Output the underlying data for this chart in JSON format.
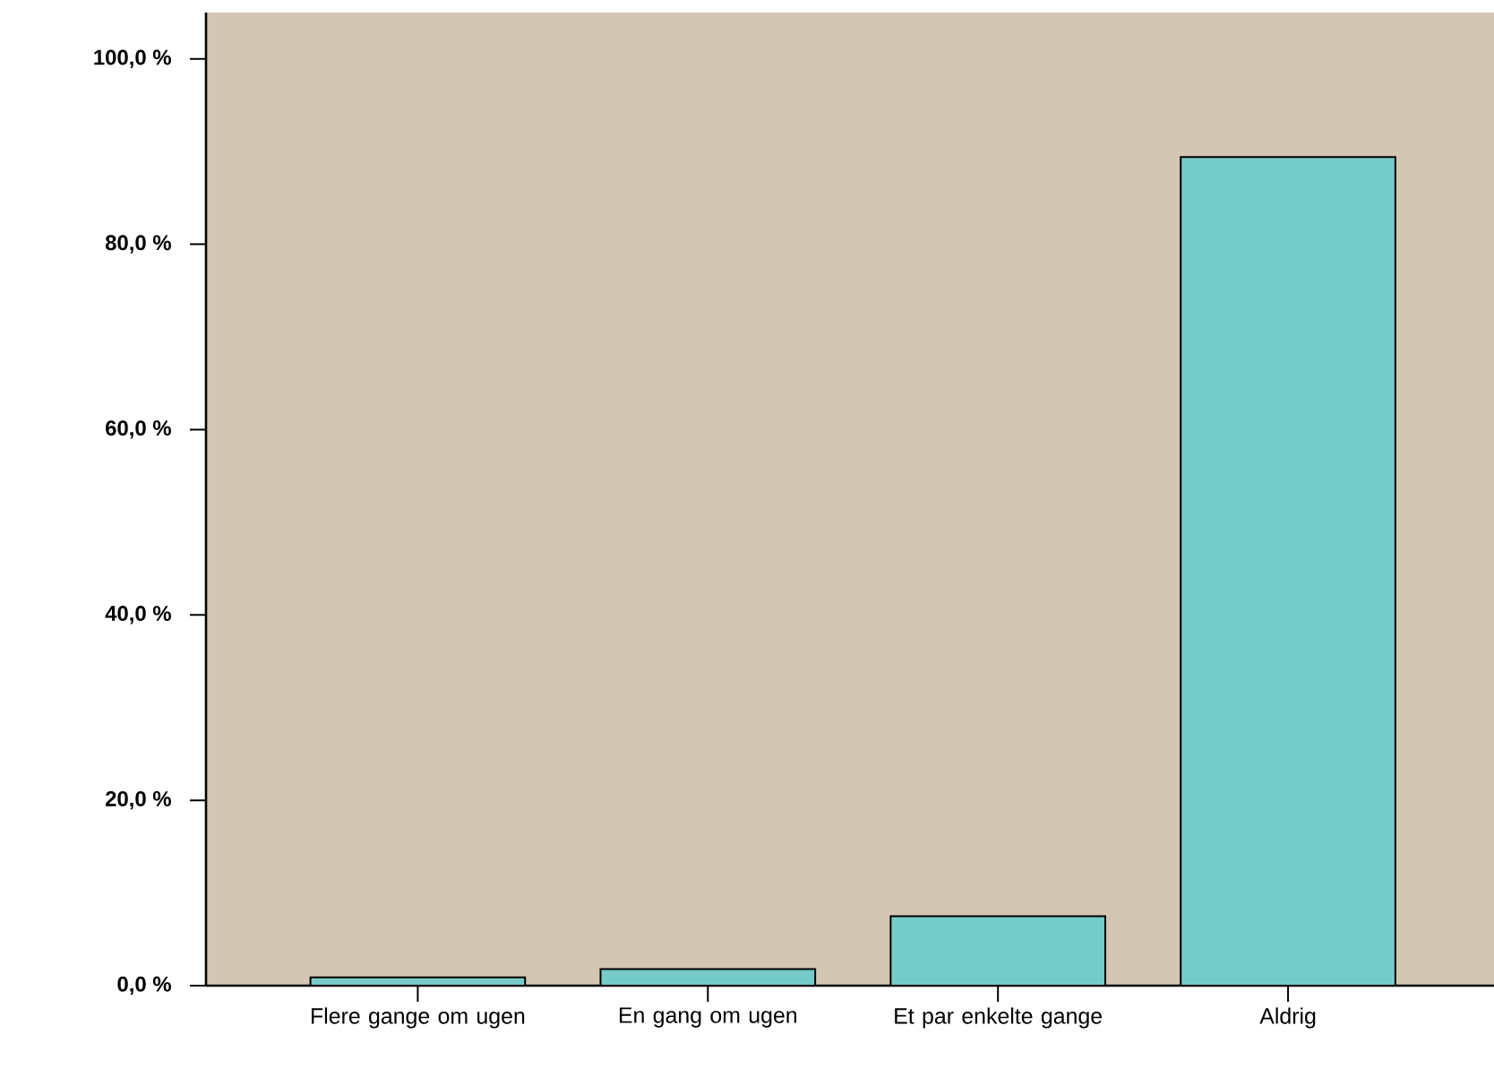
{
  "chart_data": {
    "type": "bar",
    "categories": [
      "Flere gange om ugen",
      "En gang om ugen",
      "Et par enkelte gange",
      "Aldrig"
    ],
    "values": [
      0.9,
      1.8,
      7.5,
      89.4
    ],
    "color": "#75cbc8",
    "ylim": [
      0,
      105
    ],
    "yticks": [
      {
        "value": 0,
        "label": "0,0 %"
      },
      {
        "value": 20,
        "label": "20,0 %"
      },
      {
        "value": 40,
        "label": "40,0 %"
      },
      {
        "value": 60,
        "label": "60,0 %"
      },
      {
        "value": 80,
        "label": "80,0 %"
      },
      {
        "value": 100,
        "label": "100,0 %"
      }
    ],
    "grid": false
  }
}
